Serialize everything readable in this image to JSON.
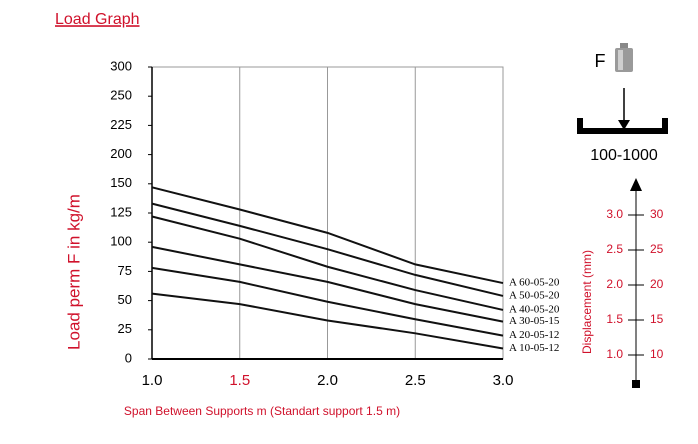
{
  "chart_data": {
    "type": "line",
    "title": "Load Graph",
    "xlabel": "Span Between Supports m (Standart support 1.5 m)",
    "ylabel": "Load perm F in kg/m",
    "x": [
      1.0,
      1.5,
      2.0,
      2.5,
      3.0
    ],
    "xlim": [
      1.0,
      3.0
    ],
    "xticks": [
      {
        "value": 1.0,
        "label": "1.0"
      },
      {
        "value": 1.5,
        "label": "1.5",
        "color": "#d0112b"
      },
      {
        "value": 2.0,
        "label": "2.0"
      },
      {
        "value": 2.5,
        "label": "2.5"
      },
      {
        "value": 3.0,
        "label": "3.0"
      }
    ],
    "ylim": [
      0,
      300
    ],
    "yticks": [
      0,
      25,
      50,
      75,
      100,
      125,
      150,
      200,
      225,
      250,
      300
    ],
    "grid": true,
    "series": [
      {
        "name": "A 60-05-20",
        "color": "#111111",
        "values": [
          147,
          128,
          108,
          81,
          65
        ]
      },
      {
        "name": "A 50-05-20",
        "color": "#111111",
        "values": [
          133,
          114,
          94,
          72,
          54
        ]
      },
      {
        "name": "A 40-05-20",
        "color": "#111111",
        "values": [
          122,
          103,
          79,
          59,
          42
        ]
      },
      {
        "name": "A 30-05-15",
        "color": "#111111",
        "values": [
          96,
          81,
          66,
          47,
          32
        ]
      },
      {
        "name": "A 20-05-12",
        "color": "#111111",
        "values": [
          78,
          66,
          49,
          34,
          20
        ]
      },
      {
        "name": "A 10-05-12",
        "color": "#111111",
        "values": [
          56,
          47,
          33,
          22,
          9
        ]
      }
    ]
  },
  "diagram": {
    "force_label": "F",
    "model_range": "100-1000"
  },
  "displacement": {
    "title": "Displacement (mm)",
    "lim": [
      10,
      30
    ],
    "ticks_left": [
      {
        "value": 3,
        "label": "3.0"
      },
      {
        "value": 2.5,
        "label": "2.5"
      },
      {
        "value": 2,
        "label": "2.0"
      },
      {
        "value": 1.5,
        "label": "1.5"
      },
      {
        "value": 1,
        "label": "1.0"
      }
    ],
    "ticks_right": [
      30,
      25,
      20,
      15,
      10
    ]
  }
}
